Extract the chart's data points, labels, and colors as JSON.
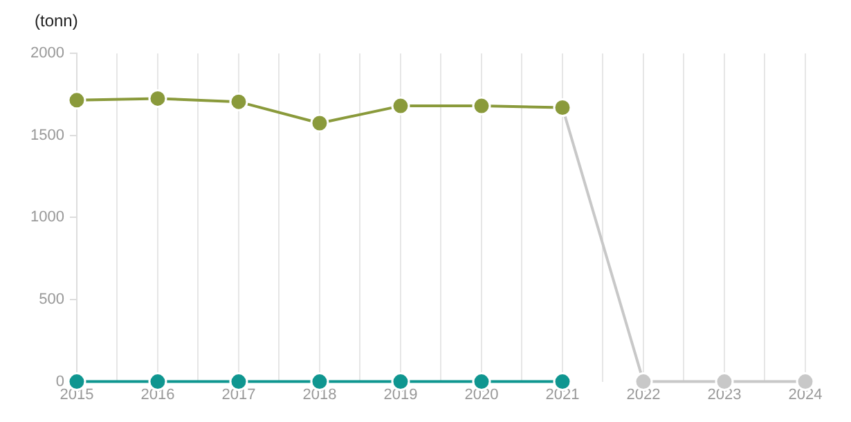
{
  "chart_data": {
    "type": "line",
    "ylabel": "(tonn)",
    "x": [
      2015,
      2016,
      2017,
      2018,
      2019,
      2020,
      2021,
      2022,
      2023,
      2024
    ],
    "series": [
      {
        "color": "#8a9a3b",
        "values": [
          1715,
          1725,
          1705,
          1575,
          1680,
          1680,
          1670,
          null,
          null,
          null
        ]
      },
      {
        "color": "#c8c8c8",
        "values": [
          null,
          null,
          null,
          null,
          null,
          null,
          1670,
          0,
          0,
          0
        ]
      },
      {
        "color": "#0f9690",
        "values": [
          0,
          0,
          0,
          0,
          0,
          0,
          0,
          null,
          null,
          null
        ]
      }
    ],
    "xlim": [
      2015,
      2024
    ],
    "xticks": [
      2015,
      {
        "value": 2015.5,
        "label": null
      },
      2016,
      {
        "value": 2016.5,
        "label": null
      },
      2017,
      {
        "value": 2017.5,
        "label": null
      },
      2018,
      {
        "value": 2018.5,
        "label": null
      },
      2019,
      {
        "value": 2019.5,
        "label": null
      },
      2020,
      {
        "value": 2020.5,
        "label": null
      },
      2021,
      {
        "value": 2021.5,
        "label": null
      },
      2022,
      {
        "value": 2022.5,
        "label": null
      },
      2023,
      {
        "value": 2023.5,
        "label": null
      },
      2024
    ],
    "ylim": [
      0,
      2000
    ],
    "yticks": [
      0,
      500,
      1000,
      1500,
      2000
    ],
    "grid": "x",
    "legend": false,
    "marker": "circle",
    "line_style": "solid"
  }
}
